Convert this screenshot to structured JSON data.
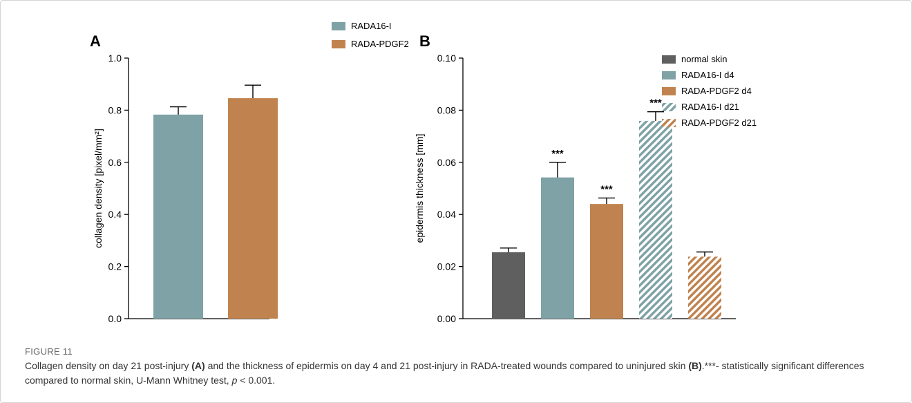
{
  "figure": {
    "label": "FIGURE 11",
    "caption_parts": {
      "t1": "Collagen density on day 21 post-injury ",
      "b1": "(A)",
      "t2": " and the thickness of epidermis on day 4 and 21 post-injury in RADA-treated wounds compared to uninjured skin ",
      "b2": "(B)",
      "t3": ".***- statistically significant differences compared to normal skin, U-Mann Whitney test, ",
      "i1": "p",
      "t4": " < 0.001."
    }
  },
  "colors": {
    "normal_skin": "#5f5f5f",
    "rada16": "#7ea2a6",
    "rada_pdgf2": "#c0834f"
  },
  "chart_data": [
    {
      "type": "bar",
      "panel": "A",
      "ylabel": "collagen density [pixel/mm²]",
      "ylim": [
        0,
        1.0
      ],
      "yticks": [
        0.0,
        0.2,
        0.4,
        0.6,
        0.8,
        1.0
      ],
      "ytick_labels": [
        "0.0",
        "0.2",
        "0.4",
        "0.6",
        "0.8",
        "1.0"
      ],
      "categories": [
        "RADA16-I",
        "RADA-PDGF2"
      ],
      "values": [
        0.783,
        0.846
      ],
      "errors": [
        0.03,
        0.05
      ],
      "patterns": [
        "solid",
        "solid"
      ],
      "colors": [
        "#7ea2a6",
        "#c0834f"
      ],
      "significance": [
        "",
        ""
      ],
      "legend": [
        "RADA16-I",
        "RADA-PDGF2"
      ],
      "legend_position": "right"
    },
    {
      "type": "bar",
      "panel": "B",
      "ylabel": "epidermis thickness [mm]",
      "ylim": [
        0,
        0.1
      ],
      "yticks": [
        0.0,
        0.02,
        0.04,
        0.06,
        0.08,
        0.1
      ],
      "ytick_labels": [
        "0.00",
        "0.02",
        "0.04",
        "0.06",
        "0.08",
        "0.10"
      ],
      "categories": [
        "normal skin",
        "RADA16-I d4",
        "RADA-PDGF2 d4",
        "RADA16-I d21",
        "RADA-PDGF2 d21"
      ],
      "values": [
        0.0255,
        0.0542,
        0.044,
        0.0759,
        0.0238
      ],
      "errors": [
        0.0016,
        0.0058,
        0.0023,
        0.0035,
        0.0018
      ],
      "patterns": [
        "solid",
        "solid",
        "solid",
        "hatch",
        "hatch"
      ],
      "colors": [
        "#5f5f5f",
        "#7ea2a6",
        "#c0834f",
        "#7ea2a6",
        "#c0834f"
      ],
      "significance": [
        "",
        "***",
        "***",
        "***",
        ""
      ],
      "legend": [
        "normal skin",
        "RADA16-I d4",
        "RADA-PDGF2 d4",
        "RADA16-I d21",
        "RADA-PDGF2 d21"
      ],
      "legend_position": "right"
    }
  ]
}
